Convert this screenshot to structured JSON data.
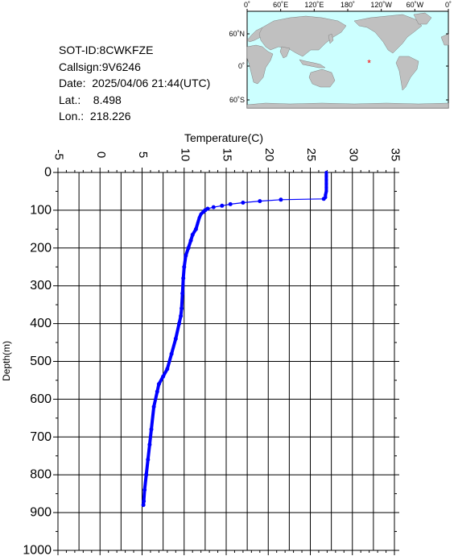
{
  "info": {
    "sot_id": "SOT-ID:8CWKFZE",
    "callsign": "Callsign:9V6246",
    "date": "Date:  2025/04/06 21:44(UTC)",
    "lat": "Lat.:    8.498",
    "lon": "Lon.:  218.226"
  },
  "map": {
    "top_labels": [
      "0˚",
      "60˚E",
      "120˚E",
      "180˚",
      "120˚W",
      "60˚W",
      "0˚"
    ],
    "left_labels": [
      "60˚N",
      "0˚",
      "60˚S"
    ],
    "ocean_color": "#ccffff",
    "land_color": "#c0c0c0",
    "marker_color": "#ff0000",
    "marker": {
      "lat": 8.498,
      "lon": 218.226
    }
  },
  "chart_data": {
    "type": "line",
    "xlabel": "Temperature(C)",
    "ylabel": "Depth(m)",
    "xlim": [
      -5,
      35
    ],
    "ylim": [
      0,
      1000
    ],
    "y_inverted": true,
    "x_axis_position": "top",
    "x_ticks": [
      -5,
      0,
      5,
      10,
      15,
      20,
      25,
      30,
      35
    ],
    "y_ticks": [
      0,
      100,
      200,
      300,
      400,
      500,
      600,
      700,
      800,
      900,
      1000
    ],
    "grid": true,
    "line_color": "#0000ff",
    "series": [
      {
        "x": [
          26.9,
          26.9,
          26.9,
          26.9,
          26.9,
          26.9,
          26.8,
          26.8,
          26.6,
          21.5,
          19.0,
          17.0,
          15.5,
          14.5,
          13.5,
          12.8,
          12.5,
          12.3,
          12.0,
          11.8,
          11.6,
          11.4,
          11.0,
          10.8,
          10.5,
          10.2,
          10.0,
          9.9,
          9.8,
          9.7,
          9.6,
          9.4,
          9.0,
          8.5,
          8.0,
          7.5,
          7.0,
          6.8,
          6.4,
          6.1,
          5.9,
          5.7,
          5.5,
          5.3,
          5.2,
          5.15
        ],
        "y": [
          0,
          10,
          20,
          30,
          40,
          50,
          60,
          66,
          70,
          72,
          76,
          80,
          84,
          88,
          92,
          96,
          100,
          104,
          110,
          120,
          135,
          150,
          165,
          180,
          200,
          220,
          250,
          280,
          320,
          360,
          380,
          400,
          440,
          480,
          520,
          540,
          560,
          580,
          620,
          680,
          720,
          760,
          800,
          840,
          870,
          880
        ]
      }
    ]
  }
}
